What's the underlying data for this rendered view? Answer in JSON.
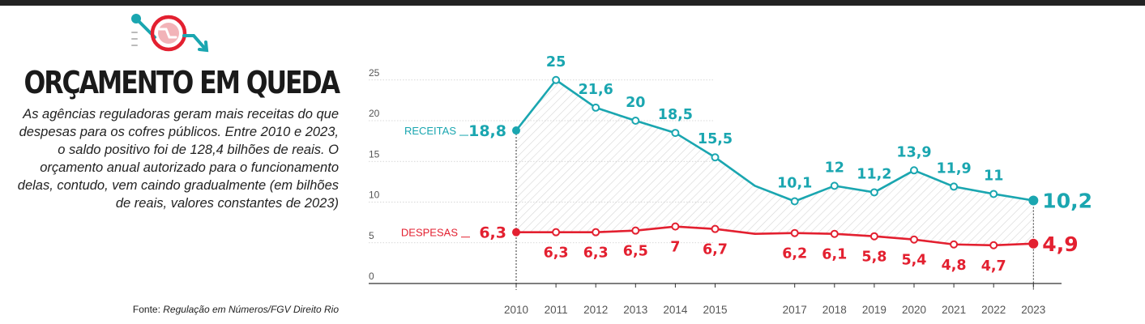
{
  "header": {
    "title": "ORÇAMENTO EM QUEDA",
    "subtitle": "As agências reguladoras geram mais receitas do que despesas para os cofres públicos. Entre 2010 e 2023, o saldo positivo foi de 128,4 bilhões de reais. O orçamento anual autorizado para o funcionamento delas, contudo, vem caindo gradualmente (em bilhões de reais, valores constantes de 2023)",
    "source_prefix": "Fonte: ",
    "source_name": "Regulação em Números/FGV Direito Rio",
    "logo_icon": "falling-trend-icon"
  },
  "colors": {
    "receitas": "#1aa6b0",
    "despesas": "#e32030",
    "grid": "#cccccc",
    "axis": "#555555",
    "hatch": "#d6d6d6"
  },
  "chart_data": {
    "type": "line",
    "x": [
      2010,
      2011,
      2012,
      2013,
      2014,
      2015,
      2016,
      2017,
      2018,
      2019,
      2020,
      2021,
      2022,
      2023
    ],
    "x_tick_labels": [
      "2010",
      "2011",
      "2012",
      "2013",
      "2014",
      "2015",
      "2017",
      "2018",
      "2019",
      "2020",
      "2021",
      "2022",
      "2023"
    ],
    "y_ticks": [
      0,
      5,
      10,
      15,
      20,
      25
    ],
    "ylim": [
      0,
      25
    ],
    "grid": true,
    "series": [
      {
        "name": "RECEITAS",
        "color": "#1aa6b0",
        "values": [
          18.8,
          25,
          21.6,
          20,
          18.5,
          15.5,
          12,
          10.1,
          12,
          11.2,
          13.9,
          11.9,
          11,
          10.2
        ],
        "labels": [
          "18,8",
          "25",
          "21,6",
          "20",
          "18,5",
          "15,5",
          "",
          "10,1",
          "12",
          "11,2",
          "13,9",
          "11,9",
          "11",
          "10,2"
        ]
      },
      {
        "name": "DESPESAS",
        "color": "#e32030",
        "values": [
          6.3,
          6.3,
          6.3,
          6.5,
          7,
          6.7,
          6.1,
          6.2,
          6.1,
          5.8,
          5.4,
          4.8,
          4.7,
          4.9
        ],
        "labels": [
          "6,3",
          "6,3",
          "6,3",
          "6,5",
          "7",
          "6,7",
          "",
          "6,2",
          "6,1",
          "5,8",
          "5,4",
          "4,8",
          "4,7",
          "4,9"
        ]
      }
    ]
  }
}
